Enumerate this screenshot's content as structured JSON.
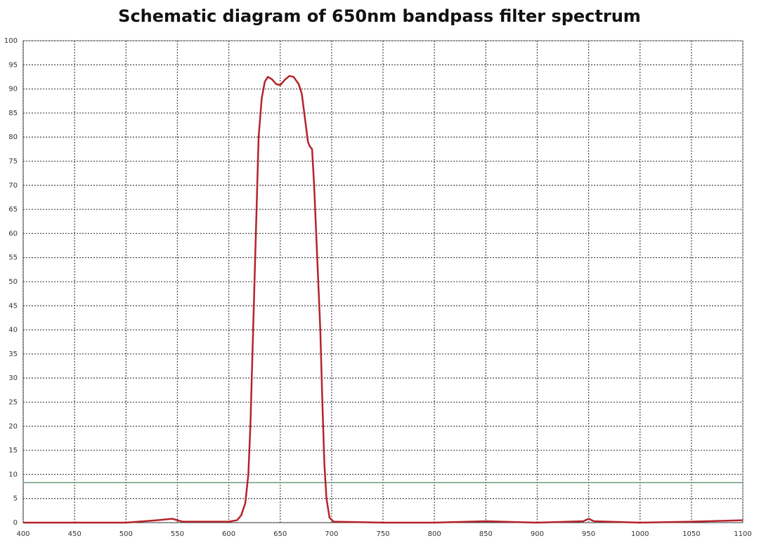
{
  "chart_data": {
    "type": "line",
    "title": "Schematic diagram of 650nm bandpass filter spectrum",
    "x": [
      400,
      500,
      530,
      545,
      555,
      600,
      608,
      612,
      616,
      619,
      621,
      623,
      625,
      627,
      629,
      632,
      635,
      638,
      642,
      646,
      650,
      655,
      659,
      663,
      668,
      671,
      674,
      677,
      679,
      681,
      683,
      685,
      687,
      689,
      691,
      693,
      695,
      698,
      702,
      750,
      800,
      850,
      900,
      945,
      950,
      955,
      1000,
      1050,
      1100
    ],
    "series": [
      {
        "color": "#b5232b",
        "values": [
          0,
          0,
          0.5,
          0.8,
          0.2,
          0.2,
          0.5,
          1.5,
          4,
          10,
          20,
          35,
          50,
          65,
          80,
          88,
          91.5,
          92.5,
          92,
          91,
          90.8,
          92,
          92.7,
          92.5,
          91,
          89,
          84,
          79,
          78,
          77.5,
          70,
          60,
          50,
          40,
          25,
          12,
          5,
          1,
          0.2,
          0,
          0,
          0.3,
          0,
          0.3,
          0.8,
          0.3,
          0,
          0.2,
          0.5
        ]
      }
    ],
    "xlim": [
      400,
      1100
    ],
    "ylim": [
      0,
      100
    ],
    "xticks": [
      400,
      450,
      500,
      550,
      600,
      650,
      700,
      750,
      800,
      850,
      900,
      950,
      1000,
      1050,
      1100
    ],
    "yticks": [
      0,
      5,
      10,
      15,
      20,
      25,
      30,
      35,
      40,
      45,
      50,
      55,
      60,
      65,
      70,
      75,
      80,
      85,
      90,
      95,
      100
    ],
    "grid": true,
    "hline": {
      "value": 8.3,
      "color": "#6f9a7c"
    }
  }
}
